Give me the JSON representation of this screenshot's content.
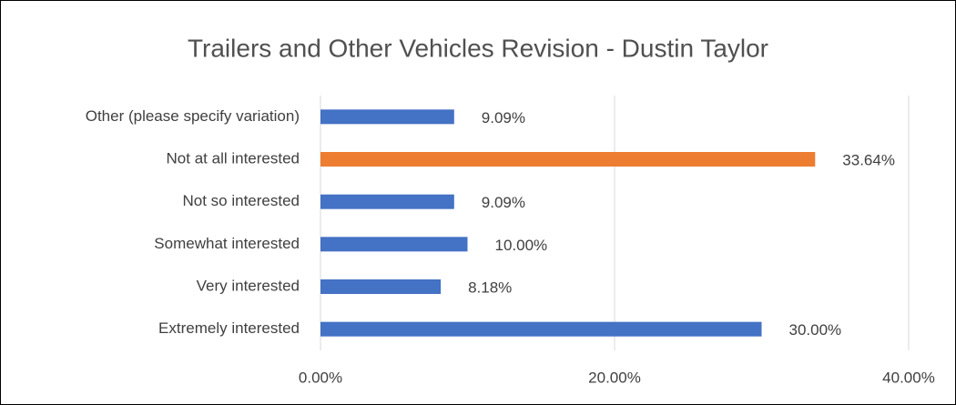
{
  "chart_data": {
    "type": "hbar",
    "title": "Trailers and Other Vehicles Revision - Dustin Taylor",
    "categories": [
      "Other (please specify variation)",
      "Not at all interested",
      "Not so interested",
      "Somewhat interested",
      "Very interested",
      "Extremely interested"
    ],
    "values": [
      9.09,
      33.64,
      9.09,
      10.0,
      8.18,
      30.0
    ],
    "value_labels": [
      "9.09%",
      "33.64%",
      "9.09%",
      "10.00%",
      "8.18%",
      "30.00%"
    ],
    "colors": [
      "#4472c4",
      "#ed7d31",
      "#4472c4",
      "#4472c4",
      "#4472c4",
      "#4472c4"
    ],
    "xlim": [
      0,
      40
    ],
    "xticks": [
      {
        "value": 0,
        "label": "0.00%"
      },
      {
        "value": 20,
        "label": "20.00%"
      },
      {
        "value": 40,
        "label": "40.00%"
      }
    ],
    "grid": true
  }
}
